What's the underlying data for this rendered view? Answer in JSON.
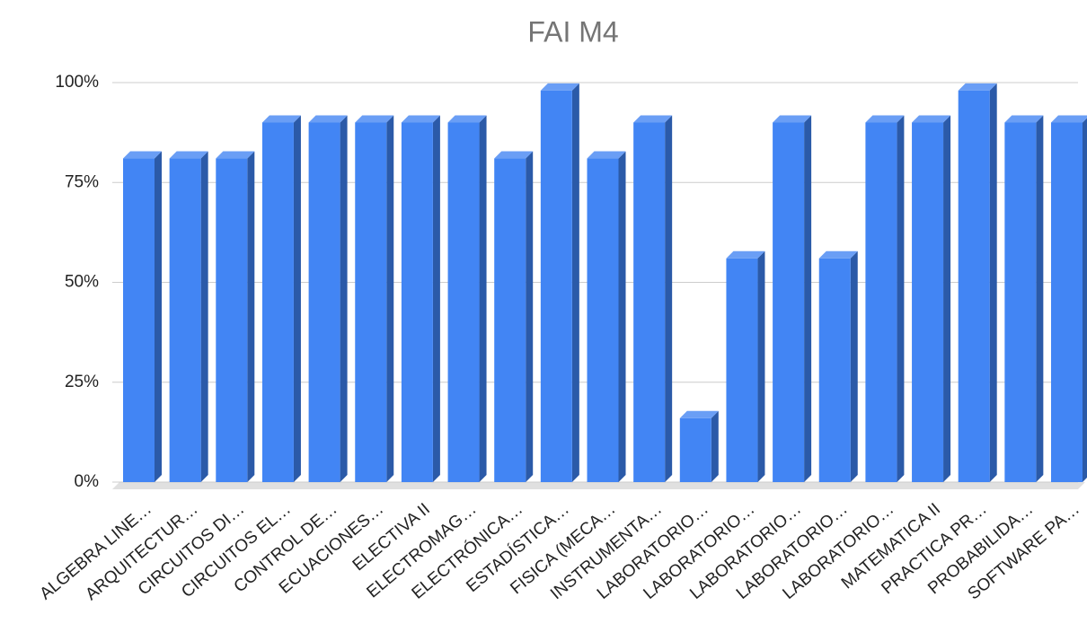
{
  "chart_data": {
    "type": "bar3d",
    "title": "FAI M4",
    "categories": [
      "ALGEBRA LINE…",
      "ARQUITECTUR…",
      "CIRCUITOS DI…",
      "CIRCUITOS EL…",
      "CONTROL DE…",
      "ECUACIONES…",
      "ELECTIVA II",
      "ELECTROMAG…",
      "ELECTRÓNICA…",
      "ESTADÍSTICA…",
      "FISICA (MECA…",
      "INSTRUMENTA…",
      "LABORATORIO…",
      "LABORATORIO…",
      "LABORATORIO…",
      "LABORATORIO…",
      "LABORATORIO…",
      "MATEMATICA II",
      "PRACTICA PR…",
      "PROBABILIDA…",
      "SOFTWARE PA…"
    ],
    "values": [
      81,
      81,
      81,
      90,
      90,
      90,
      90,
      90,
      81,
      98,
      81,
      90,
      16,
      56,
      90,
      56,
      90,
      90,
      98,
      90,
      90
    ],
    "color": "#4285f4",
    "ylim": [
      0,
      100
    ],
    "yticks": [
      {
        "value": 0,
        "label": "0%"
      },
      {
        "value": 25,
        "label": "25%"
      },
      {
        "value": 50,
        "label": "50%"
      },
      {
        "value": 75,
        "label": "75%"
      },
      {
        "value": 100,
        "label": "100%"
      }
    ],
    "grid": true
  }
}
